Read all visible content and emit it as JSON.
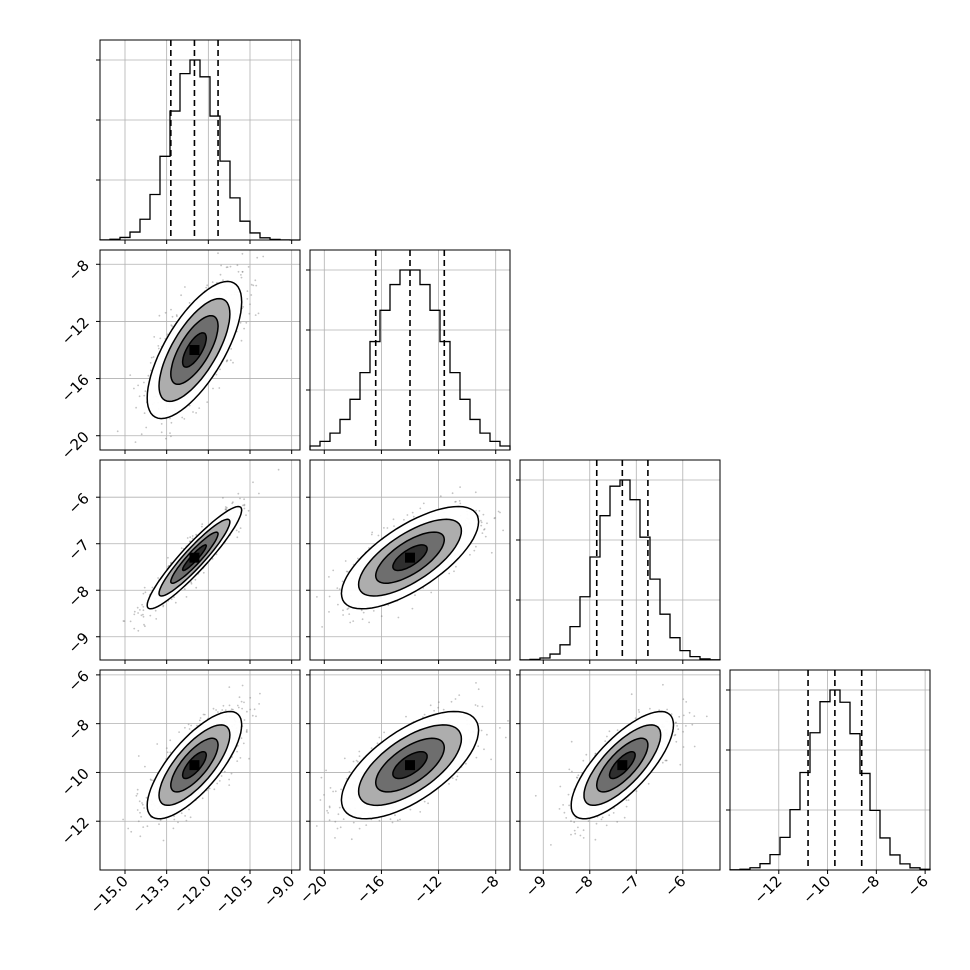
{
  "chart_data": {
    "type": "corner",
    "grid": true,
    "n_params": 4,
    "params": [
      {
        "mean": -12.5,
        "sd": 0.85,
        "range": [
          -15.9,
          -8.7
        ],
        "ticks": [
          -15.0,
          -13.5,
          -12.0,
          -10.5,
          -9.0
        ],
        "tick_labels": [
          "−15.0",
          "−13.5",
          "−12.0",
          "−10.5",
          "−9.0"
        ],
        "quantiles": [
          -13.35,
          -12.5,
          -11.65
        ]
      },
      {
        "mean": -14.0,
        "sd": 2.4,
        "range": [
          -21.0,
          -7.0
        ],
        "ticks": [
          -20,
          -16,
          -12,
          -8
        ],
        "tick_labels": [
          "−20",
          "−16",
          "−12",
          "−8"
        ],
        "quantiles": [
          -16.4,
          -14.0,
          -11.6
        ]
      },
      {
        "mean": -7.3,
        "sd": 0.55,
        "range": [
          -9.5,
          -5.2
        ],
        "ticks": [
          -9,
          -8,
          -7,
          -6
        ],
        "tick_labels": [
          "−9",
          "−8",
          "−7",
          "−6"
        ],
        "quantiles": [
          -7.85,
          -7.3,
          -6.75
        ]
      },
      {
        "mean": -9.7,
        "sd": 1.1,
        "range": [
          -14.0,
          -5.8
        ],
        "ticks": [
          -12,
          -10,
          -8,
          -6
        ],
        "tick_labels": [
          "−12",
          "−10",
          "−8",
          "−6"
        ],
        "quantiles": [
          -10.8,
          -9.7,
          -8.6
        ]
      }
    ],
    "correlation": [
      [
        1.0,
        0.7,
        0.93,
        0.75
      ],
      [
        0.7,
        1.0,
        0.7,
        0.65
      ],
      [
        0.93,
        0.7,
        1.0,
        0.75
      ],
      [
        0.75,
        0.65,
        0.75,
        1.0
      ]
    ],
    "histogram_bins": 20,
    "contour_levels": [
      0.118,
      0.393,
      0.675,
      0.864
    ]
  }
}
